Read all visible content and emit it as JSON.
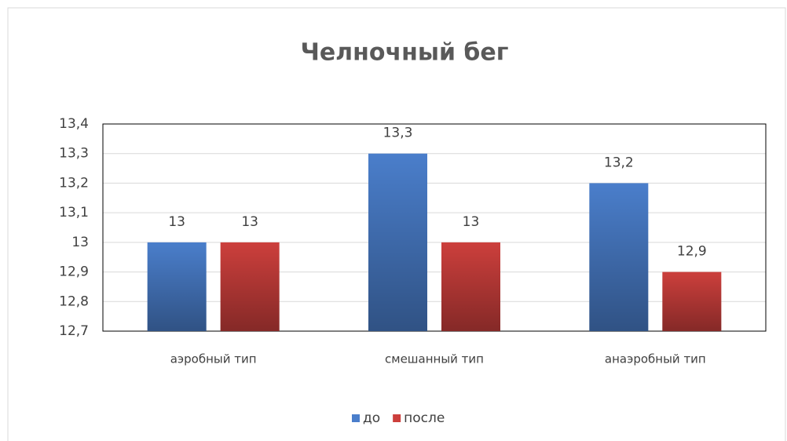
{
  "chart_data": {
    "type": "bar",
    "title": "Челночный бег",
    "categories": [
      "аэробный тип",
      "смешанный тип",
      "анаэробный тип"
    ],
    "series": [
      {
        "name": "до",
        "color": "#4a7ecb",
        "values": [
          13,
          13.3,
          13.2
        ],
        "value_labels": [
          "13",
          "13,3",
          "13,2"
        ]
      },
      {
        "name": "после",
        "color": "#cc3f3c",
        "values": [
          13,
          13,
          12.9
        ],
        "value_labels": [
          "13",
          "13",
          "12,9"
        ]
      }
    ],
    "ylim": [
      12.7,
      13.4
    ],
    "yticks": [
      {
        "value": 12.7,
        "label": "12,7"
      },
      {
        "value": 12.8,
        "label": "12,8"
      },
      {
        "value": 12.9,
        "label": "12,9"
      },
      13,
      {
        "value": 13.1,
        "label": "13,1"
      },
      {
        "value": 13.2,
        "label": "13,2"
      },
      {
        "value": 13.3,
        "label": "13,3"
      },
      {
        "value": 13.4,
        "label": "13,4"
      }
    ],
    "grid": true,
    "legend": "bottom"
  }
}
